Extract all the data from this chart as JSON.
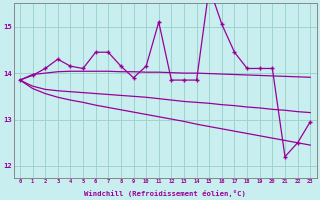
{
  "xlabel": "Windchill (Refroidissement éolien,°C)",
  "background_color": "#c8eef0",
  "grid_color": "#9dd4cc",
  "line_color": "#990099",
  "x_values": [
    0,
    1,
    2,
    3,
    4,
    5,
    6,
    7,
    8,
    9,
    10,
    11,
    12,
    13,
    14,
    15,
    16,
    17,
    18,
    19,
    20,
    21,
    22,
    23
  ],
  "main_line": [
    13.85,
    13.95,
    14.1,
    14.3,
    14.15,
    14.1,
    14.45,
    14.45,
    14.15,
    13.9,
    14.15,
    15.1,
    13.85,
    13.85,
    13.85,
    15.85,
    15.05,
    14.45,
    14.1,
    14.1,
    14.1,
    12.2,
    12.5,
    12.95
  ],
  "upper_envelope": [
    13.85,
    13.97,
    14.0,
    14.03,
    14.04,
    14.04,
    14.04,
    14.04,
    14.03,
    14.03,
    14.02,
    14.02,
    14.01,
    14.0,
    14.0,
    13.99,
    13.98,
    13.97,
    13.96,
    13.95,
    13.94,
    13.93,
    13.92,
    13.91
  ],
  "middle_envelope": [
    13.85,
    13.72,
    13.65,
    13.62,
    13.6,
    13.58,
    13.56,
    13.54,
    13.52,
    13.5,
    13.48,
    13.45,
    13.42,
    13.39,
    13.37,
    13.35,
    13.32,
    13.3,
    13.27,
    13.25,
    13.22,
    13.2,
    13.17,
    13.15
  ],
  "lower_envelope": [
    13.85,
    13.67,
    13.56,
    13.48,
    13.42,
    13.37,
    13.31,
    13.26,
    13.21,
    13.16,
    13.11,
    13.06,
    13.01,
    12.96,
    12.9,
    12.85,
    12.8,
    12.75,
    12.7,
    12.65,
    12.6,
    12.55,
    12.5,
    12.45
  ],
  "ylim": [
    11.75,
    15.5
  ],
  "yticks": [
    12,
    13,
    14,
    15
  ],
  "xlim": [
    -0.5,
    23.5
  ]
}
